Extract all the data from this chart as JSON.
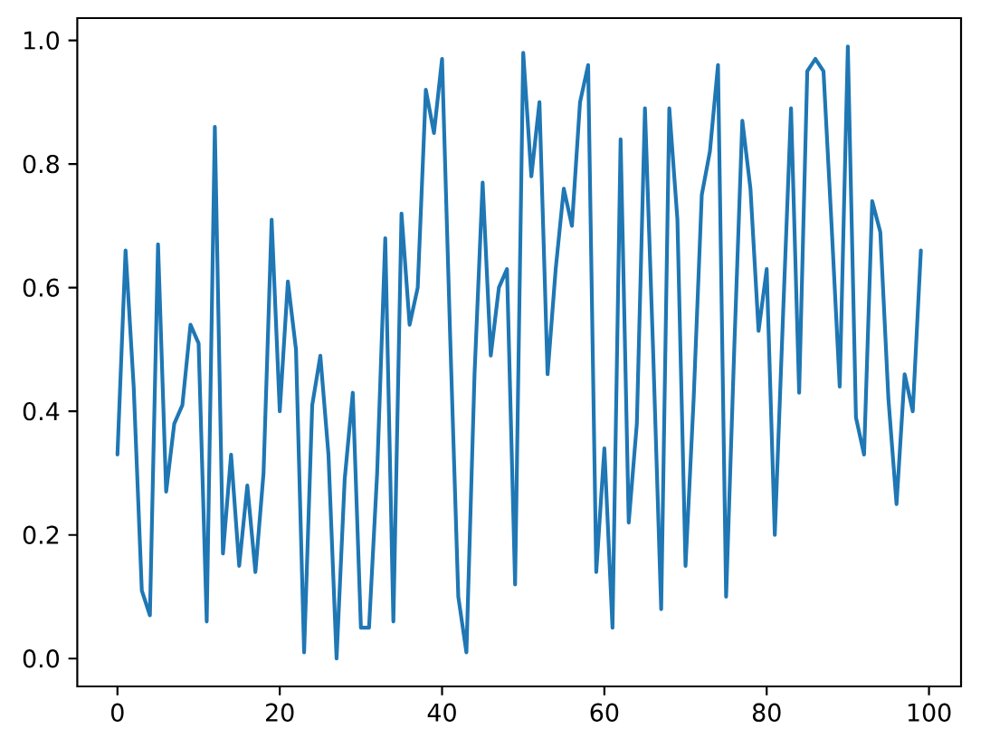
{
  "chart_data": {
    "type": "line",
    "x": [
      0,
      1,
      2,
      3,
      4,
      5,
      6,
      7,
      8,
      9,
      10,
      11,
      12,
      13,
      14,
      15,
      16,
      17,
      18,
      19,
      20,
      21,
      22,
      23,
      24,
      25,
      26,
      27,
      28,
      29,
      30,
      31,
      32,
      33,
      34,
      35,
      36,
      37,
      38,
      39,
      40,
      41,
      42,
      43,
      44,
      45,
      46,
      47,
      48,
      49,
      50,
      51,
      52,
      53,
      54,
      55,
      56,
      57,
      58,
      59,
      60,
      61,
      62,
      63,
      64,
      65,
      66,
      67,
      68,
      69,
      70,
      71,
      72,
      73,
      74,
      75,
      76,
      77,
      78,
      79,
      80,
      81,
      82,
      83,
      84,
      85,
      86,
      87,
      88,
      89,
      90,
      91,
      92,
      93,
      94,
      95,
      96,
      97,
      98,
      99
    ],
    "values": [
      0.33,
      0.66,
      0.44,
      0.11,
      0.07,
      0.67,
      0.27,
      0.38,
      0.41,
      0.54,
      0.51,
      0.06,
      0.86,
      0.17,
      0.33,
      0.15,
      0.28,
      0.14,
      0.3,
      0.71,
      0.4,
      0.61,
      0.5,
      0.01,
      0.41,
      0.49,
      0.33,
      0.0,
      0.29,
      0.43,
      0.05,
      0.05,
      0.3,
      0.68,
      0.06,
      0.72,
      0.54,
      0.6,
      0.92,
      0.85,
      0.97,
      0.52,
      0.1,
      0.01,
      0.46,
      0.77,
      0.49,
      0.6,
      0.63,
      0.12,
      0.98,
      0.78,
      0.9,
      0.46,
      0.63,
      0.76,
      0.7,
      0.9,
      0.96,
      0.14,
      0.34,
      0.05,
      0.84,
      0.22,
      0.38,
      0.89,
      0.5,
      0.08,
      0.89,
      0.71,
      0.15,
      0.42,
      0.75,
      0.82,
      0.96,
      0.1,
      0.5,
      0.87,
      0.76,
      0.53,
      0.63,
      0.2,
      0.55,
      0.89,
      0.43,
      0.95,
      0.97,
      0.95,
      0.7,
      0.44,
      0.99,
      0.39,
      0.33,
      0.74,
      0.69,
      0.42,
      0.25,
      0.46,
      0.4,
      0.66
    ],
    "color": "#1f77b4",
    "xlim": [
      -4.95,
      103.95
    ],
    "ylim": [
      -0.045,
      1.036
    ],
    "xticks": [
      0,
      20,
      40,
      60,
      80,
      100
    ],
    "yticks": [
      {
        "value": 0,
        "label": "0.0"
      },
      0.2,
      0.4,
      0.6,
      0.8,
      {
        "value": 1,
        "label": "1.0"
      }
    ]
  }
}
